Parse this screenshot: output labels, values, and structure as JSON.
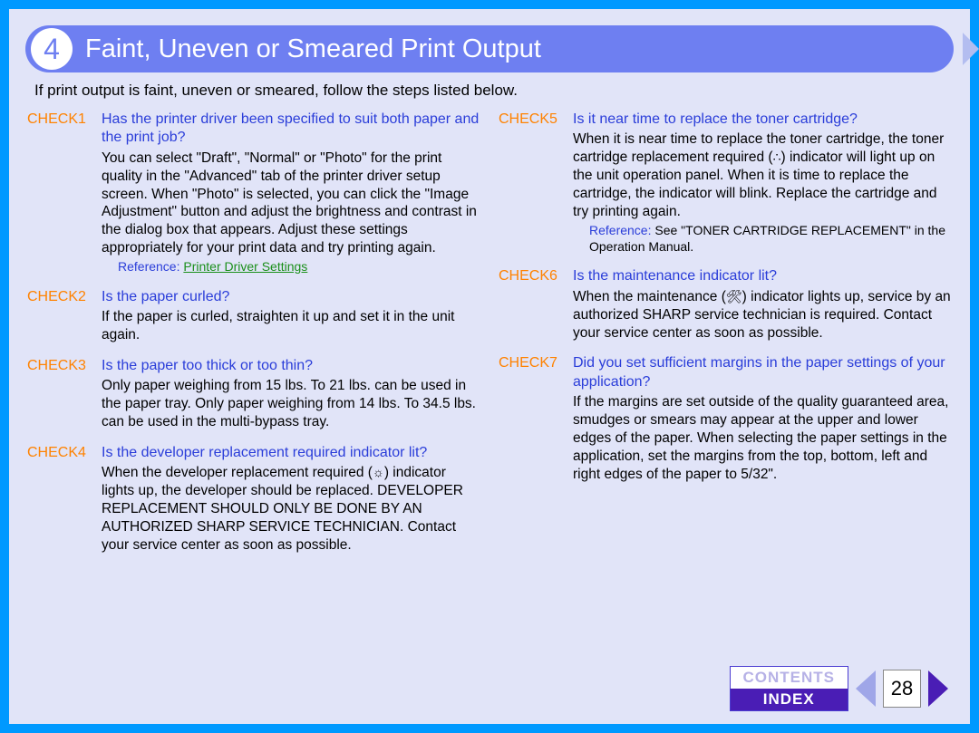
{
  "header": {
    "number": "4",
    "title": "Faint, Uneven or Smeared Print Output"
  },
  "intro": "If print output is faint, uneven or smeared, follow the steps listed below.",
  "checks_left": [
    {
      "label": "CHECK1",
      "question": "Has the printer driver been specified to suit both paper and the print job?",
      "answer": "You can select \"Draft\", \"Normal\" or \"Photo\" for the print quality in the \"Advanced\" tab of the printer driver setup screen. When \"Photo\" is selected, you can click the \"Image Adjustment\" button and adjust the brightness and contrast in the dialog box that appears. Adjust these settings appropriately for your print data and try printing again.",
      "ref_label": "Reference:",
      "ref_link": "Printer Driver Settings"
    },
    {
      "label": "CHECK2",
      "question": "Is the paper curled?",
      "answer": "If the paper is curled, straighten it up and set it in the unit again."
    },
    {
      "label": "CHECK3",
      "question": "Is the paper too thick or too thin?",
      "answer": "Only paper weighing from 15 lbs. To 21 lbs. can be used in the paper tray. Only paper weighing from 14 lbs. To 34.5 lbs. can be used in the multi-bypass tray."
    },
    {
      "label": "CHECK4",
      "question": "Is the developer replacement required indicator lit?",
      "answer_pre": "When the developer replacement required (",
      "answer_glyph": "☼",
      "answer_post": ") indicator lights up, the developer should be replaced. DEVELOPER REPLACEMENT SHOULD ONLY BE DONE BY AN AUTHORIZED SHARP SERVICE TECHNICIAN. Contact your service center as soon as possible."
    }
  ],
  "checks_right": [
    {
      "label": "CHECK5",
      "question": "Is it near time to replace the toner cartridge?",
      "answer_pre": "When it is near time to replace the toner cartridge, the toner cartridge replacement required (",
      "answer_glyph": "∴",
      "answer_post": ") indicator will light up on the unit operation panel. When it is time to replace the cartridge, the indicator will blink. Replace the cartridge and try printing again.",
      "ref_label": "Reference:",
      "ref_plain": "See \"TONER CARTRIDGE REPLACEMENT\" in the Operation Manual."
    },
    {
      "label": "CHECK6",
      "question": "Is the maintenance indicator lit?",
      "answer_pre": "When the maintenance (",
      "answer_glyph": "🛠",
      "answer_post": ") indicator lights up, service by an authorized SHARP service technician is required. Contact your service center as soon as possible."
    },
    {
      "label": "CHECK7",
      "question": "Did you set sufficient margins in the paper settings of your application?",
      "answer": "If the margins are set outside of the quality guaranteed area, smudges or smears may appear at the upper and lower edges of the paper. When selecting the paper settings in the application, set the margins from the top, bottom, left and right edges of the paper to 5/32\"."
    }
  ],
  "footer": {
    "contents": "CONTENTS",
    "index": "INDEX",
    "page": "28"
  }
}
